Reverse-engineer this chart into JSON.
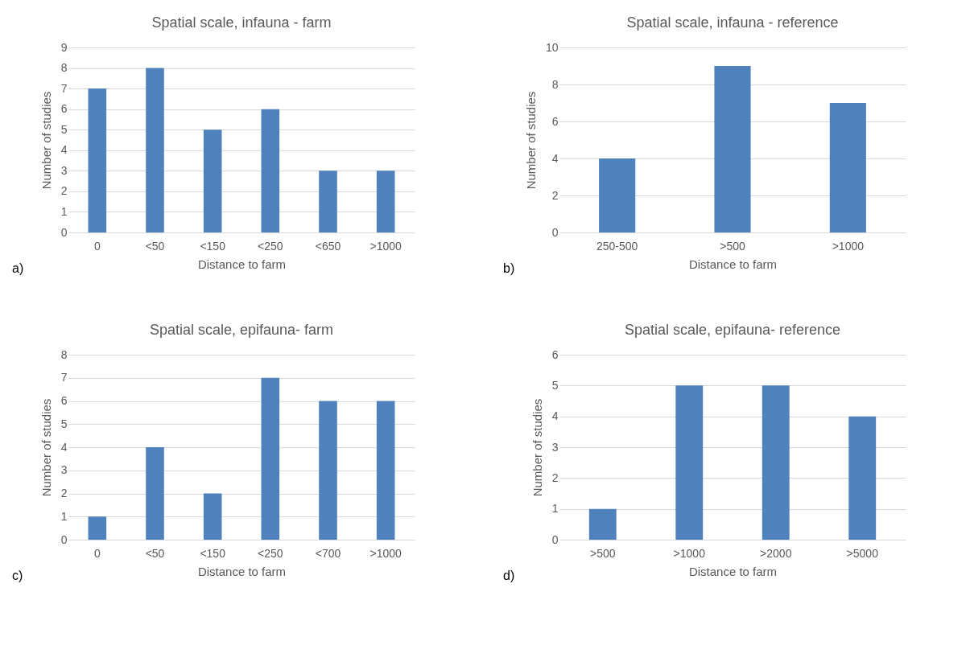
{
  "chart_data": [
    {
      "type": "bar",
      "title": "Spatial scale, infauna - farm",
      "xlabel": "Distance to farm",
      "ylabel": "Number of studies",
      "categories": [
        "0",
        "<50",
        "<150",
        "<250",
        "<650",
        ">1000"
      ],
      "values": [
        7,
        8,
        5,
        6,
        3,
        3
      ],
      "color": "#4f81bd",
      "ylim": [
        0,
        9
      ],
      "yticks": [
        0,
        1,
        2,
        3,
        4,
        5,
        6,
        7,
        8,
        9
      ],
      "grid": "y",
      "annotations": [
        "a)"
      ]
    },
    {
      "type": "bar",
      "title": "Spatial scale, infauna - reference",
      "xlabel": "Distance to farm",
      "ylabel": "Number of studies",
      "categories": [
        "250-500",
        ">500",
        ">1000"
      ],
      "values": [
        4,
        9,
        7
      ],
      "color": "#4f81bd",
      "ylim": [
        0,
        10
      ],
      "yticks": [
        0,
        2,
        4,
        6,
        8,
        10
      ],
      "grid": "y",
      "annotations": [
        "b)"
      ]
    },
    {
      "type": "bar",
      "title": "Spatial scale, epifauna- farm",
      "xlabel": "Distance to farm",
      "ylabel": "Number of studies",
      "categories": [
        "0",
        "<50",
        "<150",
        "<250",
        "<700",
        ">1000"
      ],
      "values": [
        1,
        4,
        2,
        7,
        6,
        6
      ],
      "color": "#4f81bd",
      "ylim": [
        0,
        8
      ],
      "yticks": [
        0,
        1,
        2,
        3,
        4,
        5,
        6,
        7,
        8
      ],
      "grid": "y",
      "annotations": [
        "c)"
      ]
    },
    {
      "type": "bar",
      "title": "Spatial scale, epifauna- reference",
      "xlabel": "Distance to farm",
      "ylabel": "Number of studies",
      "categories": [
        ">500",
        ">1000",
        ">2000",
        ">5000"
      ],
      "values": [
        1,
        5,
        5,
        4
      ],
      "color": "#4f81bd",
      "ylim": [
        0,
        6
      ],
      "yticks": [
        0,
        1,
        2,
        3,
        4,
        5,
        6
      ],
      "grid": "y",
      "annotations": [
        "d)"
      ]
    }
  ]
}
